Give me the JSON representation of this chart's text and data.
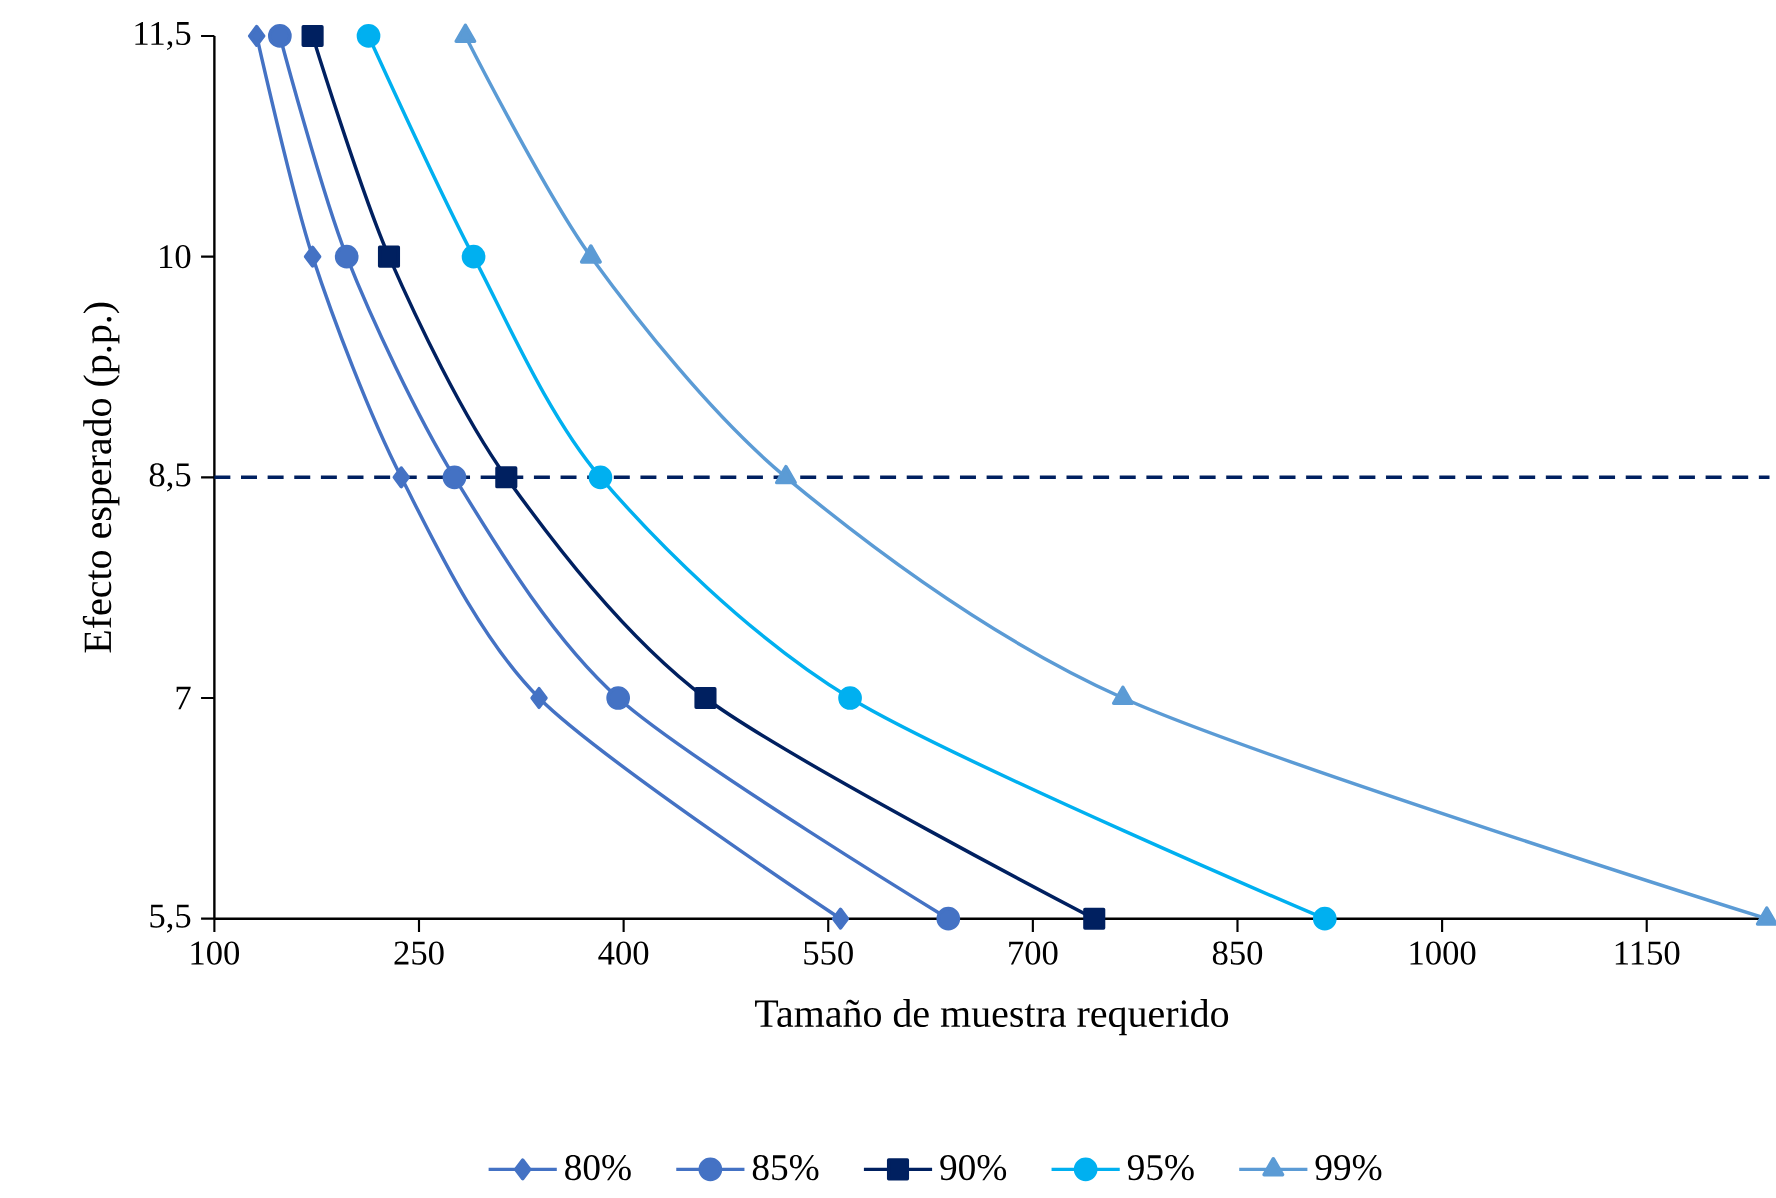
{
  "chart_data": {
    "type": "line",
    "xlabel": "Tamaño de muestra requerido",
    "ylabel": "Efecto esperado (p.p.)",
    "xlim": [
      100,
      1240
    ],
    "ylim": [
      5.5,
      11.5
    ],
    "xticks": [
      100,
      250,
      400,
      550,
      700,
      850,
      1000,
      1150
    ],
    "yticks": [
      {
        "value": 5.5,
        "label": "5,5"
      },
      7,
      {
        "value": 8.5,
        "label": "8,5"
      },
      10,
      {
        "value": 11.5,
        "label": "11,5"
      }
    ],
    "grid": false,
    "legend": "bottom",
    "ref_lines": [
      {
        "axis": "y",
        "value": 8.5,
        "color": "#002060",
        "line_style": "dashed"
      }
    ],
    "series": [
      {
        "name": "80%",
        "color": "#4472c4",
        "marker": "diamond",
        "x": [
          131,
          172,
          237,
          338,
          559
        ],
        "values": [
          11.5,
          10,
          8.5,
          7,
          5.5
        ]
      },
      {
        "name": "85%",
        "color": "#4472c4",
        "marker": "circle",
        "x": [
          148,
          197,
          276,
          396,
          638
        ],
        "values": [
          11.5,
          10,
          8.5,
          7,
          5.5
        ]
      },
      {
        "name": "90%",
        "color": "#002060",
        "marker": "square",
        "x": [
          172,
          228,
          314,
          460,
          745
        ],
        "values": [
          11.5,
          10,
          8.5,
          7,
          5.5
        ]
      },
      {
        "name": "95%",
        "color": "#00b0f0",
        "marker": "circle",
        "x": [
          213,
          290,
          383,
          566,
          914
        ],
        "values": [
          11.5,
          10,
          8.5,
          7,
          5.5
        ]
      },
      {
        "name": "99%",
        "color": "#5b9bd5",
        "marker": "triangle",
        "x": [
          284,
          376,
          519,
          766,
          1238
        ],
        "values": [
          11.5,
          10,
          8.5,
          7,
          5.5
        ]
      }
    ]
  }
}
